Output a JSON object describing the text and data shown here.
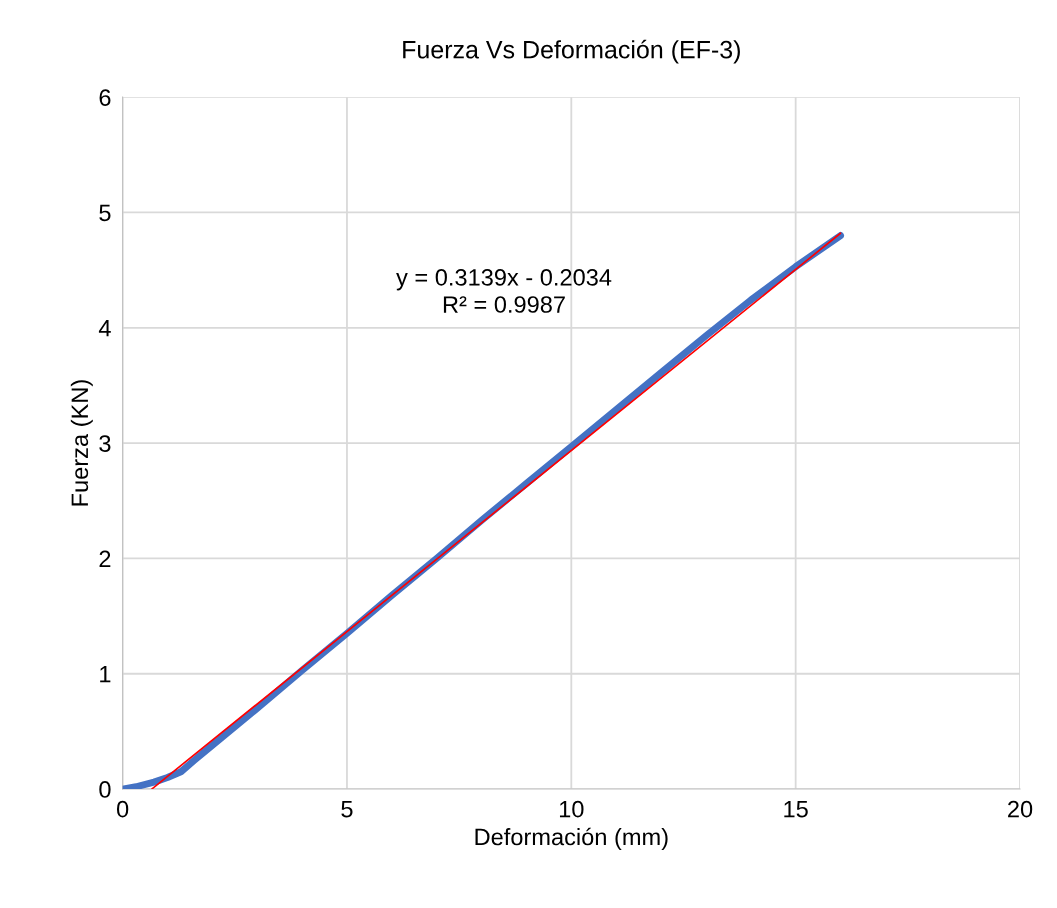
{
  "chart_data": {
    "type": "line",
    "title": "Fuerza Vs Deformación (EF-3)",
    "xlabel": "Deformación (mm)",
    "ylabel": "Fuerza (KN)",
    "series": [
      {
        "color": "#4472c4",
        "x": [
          0,
          0.3,
          0.7,
          1.0,
          1.3,
          1.6,
          2,
          3,
          4,
          5,
          6,
          7,
          8,
          9,
          10,
          11,
          12,
          13,
          14,
          15,
          16
        ],
        "values": [
          0,
          0.02,
          0.06,
          0.1,
          0.15,
          0.25,
          0.38,
          0.7,
          1.03,
          1.35,
          1.68,
          2.0,
          2.33,
          2.65,
          2.97,
          3.29,
          3.61,
          3.93,
          4.24,
          4.53,
          4.8
        ]
      },
      {
        "color": "#ff0000",
        "x": [
          0.65,
          16
        ],
        "values": [
          0,
          4.82
        ]
      }
    ],
    "annotations": [
      "y = 0.3139x - 0.2034\nR² = 0.9987"
    ],
    "xlim": [
      0,
      20
    ],
    "xticks": [
      0,
      5,
      10,
      15,
      20
    ],
    "ylim": [
      0,
      6
    ],
    "yticks": [
      0,
      1,
      2,
      3,
      4,
      5,
      6
    ],
    "grid": true,
    "marker": "none",
    "line_style": "solid"
  }
}
